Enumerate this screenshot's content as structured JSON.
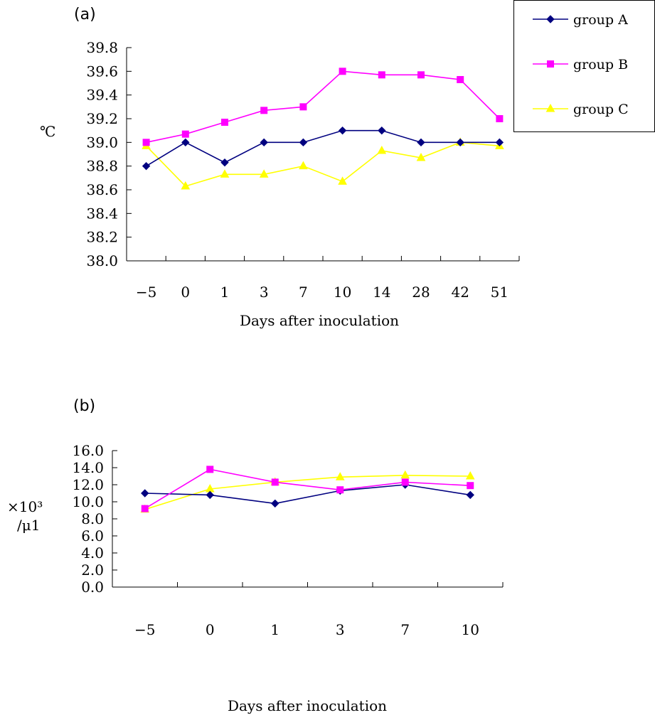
{
  "chart_data": [
    {
      "panel": "(a)",
      "type": "line",
      "ylabel": "℃",
      "xlabel": "Days after inoculation",
      "categories": [
        "-5",
        "0",
        "1",
        "3",
        "7",
        "10",
        "14",
        "28",
        "42",
        "51"
      ],
      "ylim": [
        38.0,
        39.8
      ],
      "ytick_labels": [
        "38.0",
        "38.2",
        "38.4",
        "38.6",
        "38.8",
        "39.0",
        "39.2",
        "39.4",
        "39.6",
        "39.8"
      ],
      "grid": false,
      "legend": "top-right",
      "series": [
        {
          "name": "group A",
          "color": "#000080",
          "marker": "diamond",
          "values": [
            38.8,
            39.0,
            38.83,
            39.0,
            39.0,
            39.1,
            39.1,
            39.0,
            39.0,
            39.0
          ]
        },
        {
          "name": "group B",
          "color": "#FF00FF",
          "marker": "square",
          "values": [
            39.0,
            39.07,
            39.17,
            39.27,
            39.3,
            39.6,
            39.57,
            39.57,
            39.53,
            39.2
          ]
        },
        {
          "name": "group C",
          "color": "#FFFF00",
          "marker": "triangle",
          "values": [
            38.97,
            38.63,
            38.73,
            38.73,
            38.8,
            38.67,
            38.93,
            38.87,
            39.0,
            38.97
          ]
        }
      ]
    },
    {
      "panel": "(b)",
      "type": "line",
      "ylabel": "×10³/μ1",
      "xlabel": "Days after inoculation",
      "categories": [
        "-5",
        "0",
        "1",
        "3",
        "7",
        "10"
      ],
      "ylim": [
        0.0,
        16.0
      ],
      "ytick_labels": [
        "0.0",
        "2.0",
        "4.0",
        "6.0",
        "8.0",
        "10.0",
        "12.0",
        "14.0",
        "16.0"
      ],
      "grid": false,
      "series": [
        {
          "name": "group A",
          "color": "#000080",
          "marker": "diamond",
          "values": [
            11.0,
            10.8,
            9.8,
            11.3,
            12.0,
            10.8
          ]
        },
        {
          "name": "group B",
          "color": "#FF00FF",
          "marker": "square",
          "values": [
            9.2,
            13.8,
            12.3,
            11.4,
            12.3,
            11.9
          ]
        },
        {
          "name": "group C",
          "color": "#FFFF00",
          "marker": "triangle",
          "values": [
            9.1,
            11.5,
            12.3,
            12.9,
            13.1,
            13.0
          ]
        }
      ]
    }
  ]
}
